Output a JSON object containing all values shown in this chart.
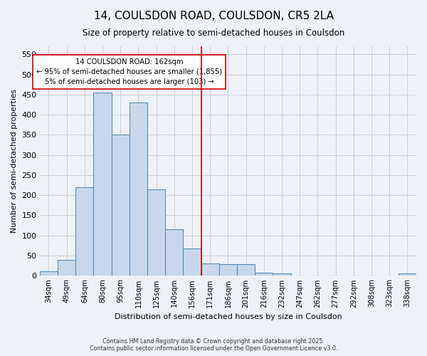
{
  "title": "14, COULSDON ROAD, COULSDON, CR5 2LA",
  "subtitle": "Size of property relative to semi-detached houses in Coulsdon",
  "xlabel": "Distribution of semi-detached houses by size in Coulsdon",
  "ylabel": "Number of semi-detached properties",
  "categories": [
    "34sqm",
    "49sqm",
    "64sqm",
    "80sqm",
    "95sqm",
    "110sqm",
    "125sqm",
    "140sqm",
    "156sqm",
    "171sqm",
    "186sqm",
    "201sqm",
    "216sqm",
    "232sqm",
    "247sqm",
    "262sqm",
    "277sqm",
    "292sqm",
    "308sqm",
    "323sqm",
    "338sqm"
  ],
  "values": [
    10,
    40,
    220,
    455,
    350,
    430,
    215,
    115,
    67,
    30,
    28,
    28,
    8,
    5,
    0,
    0,
    0,
    0,
    0,
    0,
    5
  ],
  "bar_color": "#c8d8ea",
  "bar_edge_color": "#5b8db8",
  "background_color": "#eef2f8",
  "grid_color": "#c8c8d0",
  "red_line_index": 8.5,
  "annotation_title": "14 COULSDON ROAD: 162sqm",
  "annotation_line1": "← 95% of semi-detached houses are smaller (1,855)",
  "annotation_line2": "5% of semi-detached houses are larger (103) →",
  "ylim": [
    0,
    570
  ],
  "yticks": [
    0,
    50,
    100,
    150,
    200,
    250,
    300,
    350,
    400,
    450,
    500,
    550
  ],
  "footer1": "Contains HM Land Registry data © Crown copyright and database right 2025.",
  "footer2": "Contains public sector information licensed under the Open Government Licence v3.0."
}
